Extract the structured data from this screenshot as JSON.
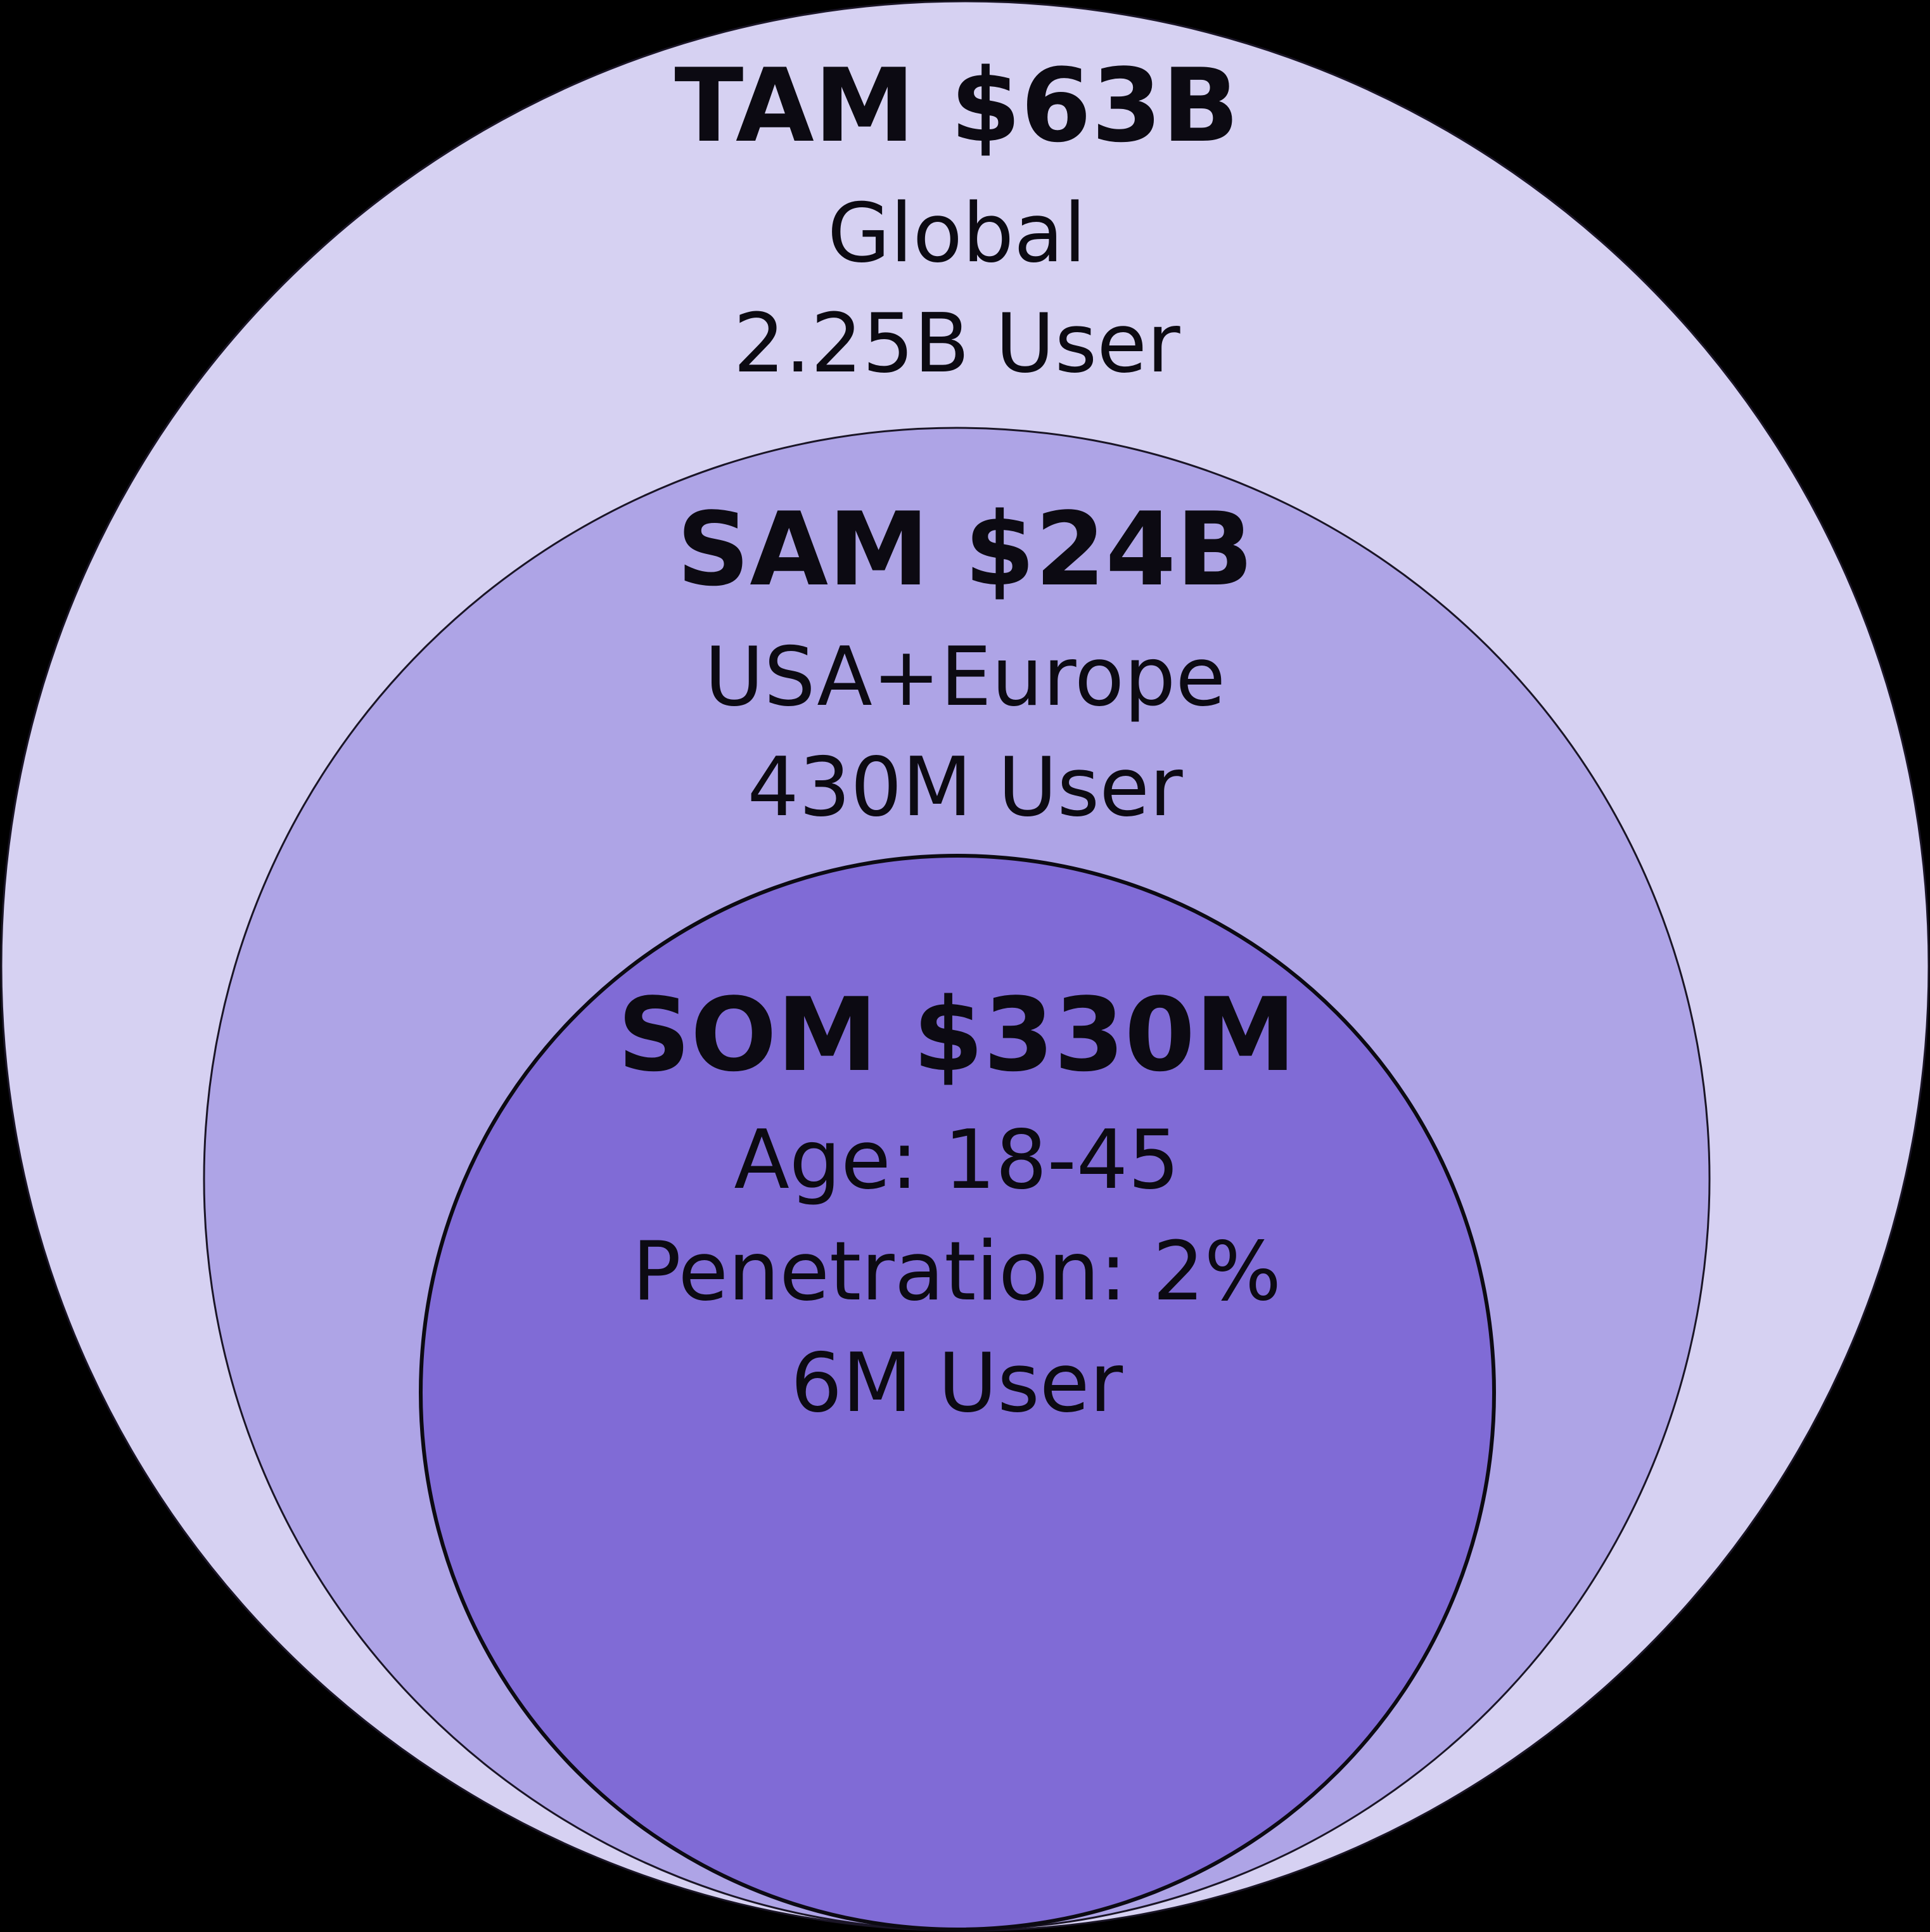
{
  "background_color": "#000000",
  "tam": {
    "heading": "TAM $63B",
    "line1": "Global",
    "line2": "2.25B User",
    "fill_color": "#d6d1f2",
    "stroke_color": "#1a1526"
  },
  "sam": {
    "heading": "SAM $24B",
    "line1": "USA+Europe",
    "line2": "430M User",
    "fill_color": "#aea4e6",
    "stroke_color": "#1a1526"
  },
  "som": {
    "heading": "SOM $330M",
    "line1": "Age: 18-45",
    "line2": "Penetration: 2%",
    "line3": "6M User",
    "fill_color": "#806bd6",
    "stroke_color": "#0c0a12"
  }
}
